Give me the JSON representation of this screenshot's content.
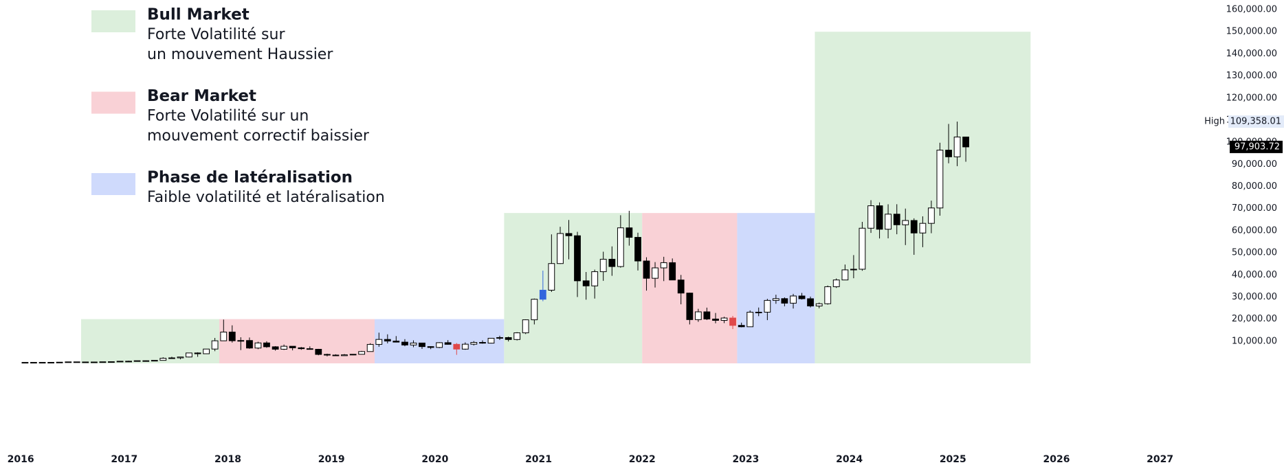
{
  "chart_data": {
    "type": "candlestick",
    "xlim": [
      2015.8,
      2027.48
    ],
    "xticks": [
      2016,
      2017,
      2018,
      2019,
      2020,
      2021,
      2022,
      2023,
      2024,
      2025,
      2026,
      2027
    ],
    "ylim": [
      0,
      162500
    ],
    "yticks": [
      {
        "value": 10000,
        "label": "10,000.00"
      },
      {
        "value": 20000,
        "label": "20,000.00"
      },
      {
        "value": 30000,
        "label": "30,000.00"
      },
      {
        "value": 40000,
        "label": "40,000.00"
      },
      {
        "value": 50000,
        "label": "50,000.00"
      },
      {
        "value": 60000,
        "label": "60,000.00"
      },
      {
        "value": 70000,
        "label": "70,000.00"
      },
      {
        "value": 80000,
        "label": "80,000.00"
      },
      {
        "value": 90000,
        "label": "90,000.00"
      },
      {
        "value": 100000,
        "label": "100,000.00"
      },
      {
        "value": 110000,
        "label": "110,000.00"
      },
      {
        "value": 120000,
        "label": "120,000.00"
      },
      {
        "value": 130000,
        "label": "130,000.00"
      },
      {
        "value": 140000,
        "label": "140,000.00"
      },
      {
        "value": 150000,
        "label": "150,000.00"
      },
      {
        "value": 160000,
        "label": "160,000.00"
      }
    ],
    "up_color": "#ffffff",
    "down_color": "#000000",
    "wick_color": "#000000",
    "legend": [
      {
        "title": "Bull Market",
        "lines": [
          "Forte Volatilité sur",
          "un mouvement Haussier"
        ],
        "color": "#dcefdc"
      },
      {
        "title": "Bear Market",
        "lines": [
          "Forte Volatilité sur un",
          "mouvement correctif baissier"
        ],
        "color": "#f9d1d6"
      },
      {
        "title": "Phase de latéralisation",
        "lines": [
          "Faible volatilité et latéralisation"
        ],
        "color": "#cfdafc"
      }
    ],
    "regions": [
      {
        "start": 2016.583,
        "end": 2017.917,
        "top": 20000,
        "color": "#dcefdc"
      },
      {
        "start": 2017.917,
        "end": 2019.417,
        "top": 20000,
        "color": "#f9d1d6"
      },
      {
        "start": 2019.417,
        "end": 2020.667,
        "top": 20000,
        "color": "#cfdafc"
      },
      {
        "start": 2020.667,
        "end": 2022.0,
        "top": 68000,
        "color": "#dcefdc"
      },
      {
        "start": 2022.0,
        "end": 2022.917,
        "top": 68000,
        "color": "#f9d1d6"
      },
      {
        "start": 2022.917,
        "end": 2023.667,
        "top": 68000,
        "color": "#cfdafc"
      },
      {
        "start": 2023.667,
        "end": 2025.75,
        "top": 150000,
        "color": "#dcefdc"
      }
    ],
    "highlights": [
      {
        "x": 2020.167,
        "color": "#e0484a"
      },
      {
        "x": 2021.0,
        "color": "#3366dd"
      },
      {
        "x": 2022.833,
        "color": "#e0484a"
      }
    ],
    "high_marker": {
      "label": "High",
      "value": 109358.01,
      "value_label": "109,358.01",
      "color": "#e3ebf9"
    },
    "last_marker": {
      "value": 97903.72,
      "value_label": "97,903.72",
      "color": "#000000"
    },
    "x": [
      2016.0,
      2016.083,
      2016.167,
      2016.25,
      2016.333,
      2016.417,
      2016.5,
      2016.583,
      2016.667,
      2016.75,
      2016.833,
      2016.917,
      2017.0,
      2017.083,
      2017.167,
      2017.25,
      2017.333,
      2017.417,
      2017.5,
      2017.583,
      2017.667,
      2017.75,
      2017.833,
      2017.917,
      2018.0,
      2018.083,
      2018.167,
      2018.25,
      2018.333,
      2018.417,
      2018.5,
      2018.583,
      2018.667,
      2018.75,
      2018.833,
      2018.917,
      2019.0,
      2019.083,
      2019.167,
      2019.25,
      2019.333,
      2019.417,
      2019.5,
      2019.583,
      2019.667,
      2019.75,
      2019.833,
      2019.917,
      2020.0,
      2020.083,
      2020.167,
      2020.25,
      2020.333,
      2020.417,
      2020.5,
      2020.583,
      2020.667,
      2020.75,
      2020.833,
      2020.917,
      2021.0,
      2021.083,
      2021.167,
      2021.25,
      2021.333,
      2021.417,
      2021.5,
      2021.583,
      2021.667,
      2021.75,
      2021.833,
      2021.917,
      2022.0,
      2022.083,
      2022.167,
      2022.25,
      2022.333,
      2022.417,
      2022.5,
      2022.583,
      2022.667,
      2022.75,
      2022.833,
      2022.917,
      2023.0,
      2023.083,
      2023.167,
      2023.25,
      2023.333,
      2023.417,
      2023.5,
      2023.583,
      2023.667,
      2023.75,
      2023.833,
      2023.917,
      2024.0,
      2024.083,
      2024.167,
      2024.25,
      2024.333,
      2024.417,
      2024.5,
      2024.583,
      2024.667,
      2024.75,
      2024.833,
      2024.917,
      2025.0,
      2025.083
    ],
    "open": [
      430,
      370,
      437,
      416,
      448,
      531,
      673,
      624,
      575,
      609,
      698,
      742,
      963,
      970,
      1190,
      1070,
      1350,
      2300,
      2480,
      2870,
      4700,
      4340,
      6470,
      10200,
      14160,
      10220,
      10330,
      6920,
      9240,
      7490,
      6390,
      7730,
      7030,
      6630,
      6370,
      4040,
      3740,
      3460,
      3850,
      4100,
      5350,
      8570,
      10820,
      10080,
      9600,
      8300,
      9200,
      7570,
      7190,
      9350,
      8600,
      6440,
      8660,
      9460,
      9140,
      11350,
      11660,
      10780,
      13800,
      19700,
      29000,
      33100,
      45140,
      58740,
      57720,
      37330,
      35040,
      41460,
      47100,
      43790,
      61300,
      57000,
      46300,
      38480,
      43190,
      45540,
      37710,
      31790,
      19780,
      23300,
      20050,
      19430,
      20500,
      17170,
      16540,
      23140,
      23150,
      28470,
      29270,
      27220,
      30470,
      29230,
      25940,
      26970,
      34660,
      37720,
      42280,
      42580,
      61130,
      71280,
      60670,
      67490,
      62680,
      64620,
      58970,
      63330,
      70290,
      96450,
      93430,
      102400
    ],
    "high": [
      460,
      440,
      440,
      466,
      550,
      780,
      700,
      630,
      630,
      740,
      760,
      980,
      1190,
      1200,
      1290,
      1350,
      2760,
      2980,
      2920,
      4770,
      5000,
      6470,
      11500,
      19800,
      17200,
      11800,
      11700,
      9770,
      9990,
      7780,
      8500,
      7760,
      7400,
      7680,
      6550,
      4380,
      4100,
      4200,
      4130,
      5630,
      9100,
      13880,
      13130,
      12330,
      10950,
      10400,
      9280,
      7750,
      9580,
      10500,
      9200,
      9470,
      10080,
      10400,
      11450,
      12480,
      12080,
      14100,
      19900,
      29300,
      41950,
      58350,
      61780,
      64850,
      59500,
      41330,
      42400,
      50500,
      52900,
      67000,
      69000,
      59100,
      47990,
      45800,
      48200,
      47450,
      40000,
      31990,
      24670,
      25200,
      22800,
      21090,
      21450,
      18400,
      23960,
      25250,
      29180,
      31050,
      29840,
      31430,
      31860,
      30200,
      27490,
      35200,
      38400,
      44700,
      48970,
      64000,
      73800,
      72800,
      71950,
      71980,
      70000,
      65600,
      66500,
      73600,
      99800,
      108300,
      109358.01,
      102500
    ],
    "low": [
      350,
      365,
      395,
      412,
      436,
      525,
      600,
      470,
      570,
      605,
      690,
      740,
      750,
      930,
      890,
      1060,
      1340,
      2300,
      1830,
      2670,
      2950,
      4200,
      5500,
      10100,
      9400,
      6000,
      6600,
      6430,
      7040,
      5750,
      6070,
      5880,
      6120,
      6200,
      3650,
      3150,
      3400,
      3380,
      3680,
      4080,
      5330,
      7500,
      9040,
      9450,
      7740,
      7300,
      6520,
      6430,
      6870,
      8450,
      3850,
      6150,
      8100,
      8900,
      8980,
      10600,
      9900,
      10380,
      13250,
      17600,
      28100,
      32300,
      44950,
      47050,
      30000,
      28800,
      29300,
      37330,
      39600,
      43290,
      53250,
      42000,
      32900,
      34300,
      37200,
      37700,
      26700,
      17600,
      18780,
      19600,
      18130,
      18200,
      15500,
      16300,
      16500,
      21350,
      19550,
      26940,
      25800,
      24800,
      28860,
      25300,
      24900,
      26560,
      34100,
      37600,
      38500,
      41880,
      59000,
      56500,
      56550,
      58400,
      53500,
      49100,
      52550,
      58860,
      66800,
      90500,
      89200,
      91200
    ],
    "close": [
      370,
      437,
      416,
      448,
      531,
      673,
      624,
      575,
      609,
      698,
      742,
      963,
      970,
      1190,
      1070,
      1350,
      2300,
      2480,
      2870,
      4700,
      4340,
      6470,
      10200,
      14160,
      10220,
      10330,
      6920,
      9240,
      7490,
      6390,
      7730,
      7030,
      6630,
      6370,
      4040,
      3740,
      3460,
      3850,
      4100,
      5350,
      8570,
      10820,
      10080,
      9600,
      8300,
      9200,
      7570,
      7190,
      9350,
      8600,
      6440,
      8660,
      9460,
      9140,
      11350,
      11660,
      10780,
      13800,
      19700,
      29000,
      33100,
      45140,
      58740,
      57720,
      37330,
      35040,
      41460,
      47100,
      43790,
      61300,
      57000,
      46300,
      38480,
      43190,
      45540,
      37710,
      31790,
      19780,
      23300,
      20050,
      19430,
      20500,
      17170,
      16540,
      23140,
      23150,
      28470,
      29270,
      27220,
      30470,
      29230,
      25940,
      26970,
      34660,
      37720,
      42280,
      42580,
      61130,
      71280,
      60670,
      67490,
      62680,
      64620,
      58970,
      63330,
      70290,
      96450,
      93430,
      102400,
      97903.72
    ]
  }
}
